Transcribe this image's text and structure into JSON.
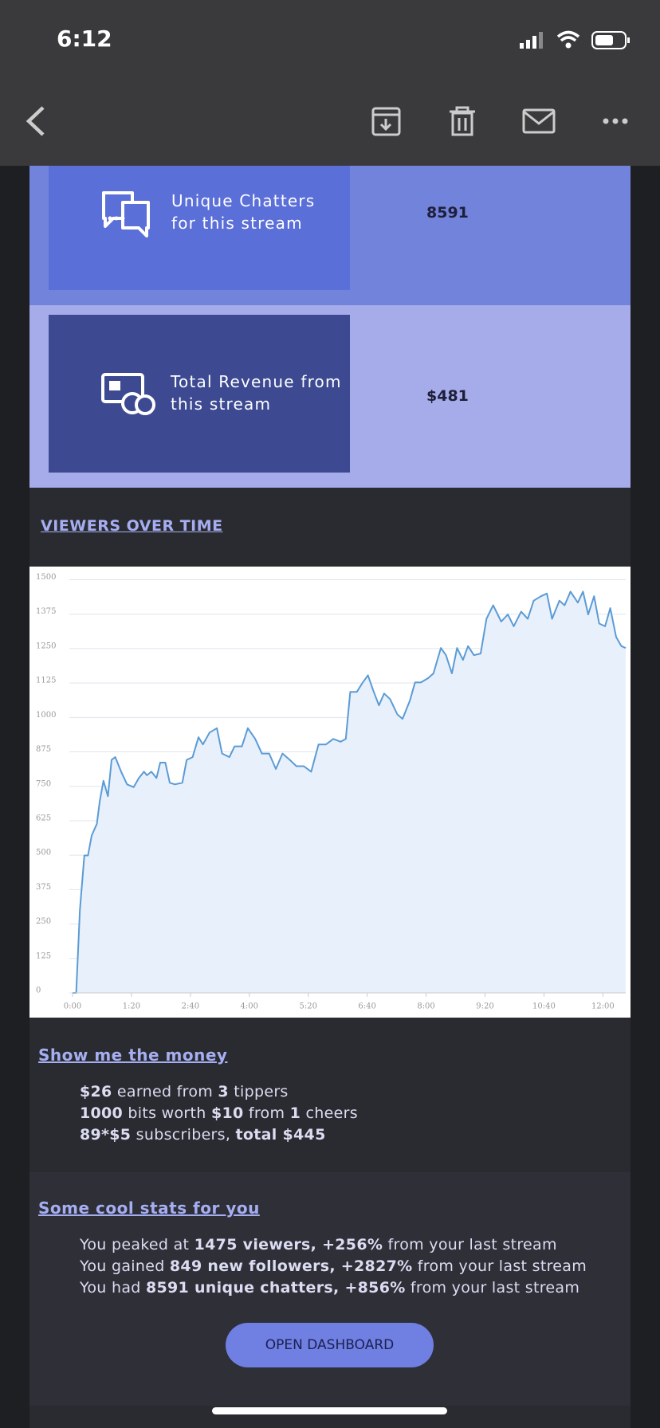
{
  "status_bar": {
    "time": "6:12"
  },
  "stats": [
    {
      "label_lines": [
        "Unique Chatters",
        "for this stream"
      ],
      "value": "8591"
    },
    {
      "label_lines": [
        "Total Revenue from",
        "this stream"
      ],
      "value": "$481"
    }
  ],
  "chart_section": {
    "heading": "VIEWERS OVER TIME"
  },
  "chart_data": {
    "type": "line",
    "x": [
      0,
      5,
      10,
      16,
      21,
      26,
      33,
      37,
      42,
      48,
      53,
      58,
      66,
      74,
      83,
      90,
      97,
      101,
      107,
      114,
      119,
      126,
      132,
      139,
      149,
      155,
      163,
      171,
      177,
      186,
      196,
      203,
      213,
      220,
      230,
      238,
      248,
      257,
      267,
      276,
      285,
      295,
      304,
      314,
      324,
      334,
      344,
      354,
      364,
      371,
      377,
      386,
      394,
      401,
      408,
      416,
      423,
      431,
      441,
      448,
      458,
      465,
      473,
      483,
      490,
      500,
      507,
      515,
      522,
      530,
      537,
      545,
      554,
      562,
      571,
      582,
      591,
      599,
      609,
      618,
      626,
      636,
      644,
      651,
      661,
      668,
      676,
      686,
      693,
      700,
      708,
      715,
      723,
      730,
      738,
      745,
      751
    ],
    "series": [
      {
        "color": "#5b9bd5",
        "fill": "#e8f1fb",
        "values": [
          0,
          0,
          300,
          499,
          499,
          571,
          614,
          697,
          770,
          714,
          846,
          856,
          803,
          757,
          747,
          780,
          803,
          790,
          803,
          780,
          836,
          836,
          763,
          757,
          763,
          846,
          856,
          928,
          902,
          945,
          961,
          869,
          856,
          895,
          895,
          961,
          922,
          869,
          869,
          813,
          869,
          846,
          823,
          823,
          803,
          902,
          902,
          922,
          912,
          922,
          1093,
          1093,
          1127,
          1153,
          1100,
          1044,
          1087,
          1067,
          1011,
          995,
          1061,
          1127,
          1127,
          1143,
          1160,
          1252,
          1226,
          1160,
          1252,
          1209,
          1259,
          1226,
          1232,
          1358,
          1407,
          1348,
          1374,
          1331,
          1384,
          1358,
          1424,
          1440,
          1450,
          1358,
          1424,
          1407,
          1457,
          1417,
          1457,
          1374,
          1440,
          1341,
          1331,
          1397,
          1292,
          1259,
          1252
        ]
      }
    ],
    "xlim": [
      0,
      751
    ],
    "xticks": [
      {
        "value": 0,
        "label": "0:00"
      },
      {
        "value": 80,
        "label": "1:20"
      },
      {
        "value": 160,
        "label": "2:40"
      },
      {
        "value": 240,
        "label": "4:00"
      },
      {
        "value": 320,
        "label": "5:20"
      },
      {
        "value": 400,
        "label": "6:40"
      },
      {
        "value": 480,
        "label": "8:00"
      },
      {
        "value": 560,
        "label": "9:20"
      },
      {
        "value": 640,
        "label": "10:40"
      },
      {
        "value": 720,
        "label": "12:00"
      }
    ],
    "ylim": [
      0,
      1500
    ],
    "yticks": [
      0,
      125,
      250,
      375,
      500,
      625,
      750,
      875,
      1000,
      1125,
      1250,
      1375,
      1500
    ],
    "grid": true
  },
  "money": {
    "heading": "Show me the money",
    "lines": [
      [
        {
          "text": "$26",
          "bold": true
        },
        {
          "text": " earned from "
        },
        {
          "text": "3",
          "bold": true
        },
        {
          "text": " tippers"
        }
      ],
      [
        {
          "text": "1000",
          "bold": true
        },
        {
          "text": " bits worth "
        },
        {
          "text": "$10",
          "bold": true
        },
        {
          "text": " from "
        },
        {
          "text": "1",
          "bold": true
        },
        {
          "text": " cheers"
        }
      ],
      [
        {
          "text": "89*$5",
          "bold": true
        },
        {
          "text": " subscribers, "
        },
        {
          "text": "total $445",
          "bold": true
        }
      ]
    ]
  },
  "cool_stats": {
    "heading": "Some cool stats for you",
    "lines": [
      [
        {
          "text": "You peaked at "
        },
        {
          "text": "1475 viewers, +256%",
          "bold": true
        },
        {
          "text": " from your last stream"
        }
      ],
      [
        {
          "text": "You gained "
        },
        {
          "text": "849 new followers, +2827%",
          "bold": true
        },
        {
          "text": " from your last stream"
        }
      ],
      [
        {
          "text": "You had "
        },
        {
          "text": "8591 unique chatters, +856%",
          "bold": true
        },
        {
          "text": " from your last stream"
        }
      ]
    ]
  },
  "button": {
    "label": "OPEN DASHBOARD"
  }
}
